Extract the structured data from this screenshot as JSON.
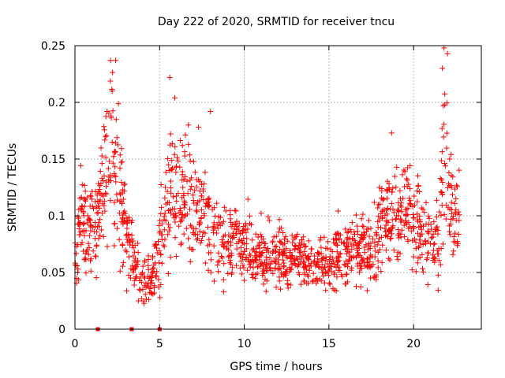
{
  "chart_data": {
    "type": "scatter",
    "title": "Day 222 of 2020, SRMTID for receiver tncu",
    "xlabel": "GPS time / hours",
    "ylabel": "SRMTID / TECUs",
    "xlim": [
      0,
      24
    ],
    "ylim": [
      0,
      0.25
    ],
    "x_ticks": [
      0,
      5,
      10,
      15,
      20
    ],
    "x_tick_labels": [
      "0",
      "5",
      "10",
      "15",
      "20"
    ],
    "y_ticks": [
      0,
      0.05,
      0.1,
      0.15,
      0.2,
      0.25
    ],
    "y_tick_labels": [
      "0",
      "0.05",
      "0.1",
      "0.15",
      "0.2",
      "0.25"
    ],
    "grid": true,
    "marker": "plus",
    "color": "#ff0000",
    "trend": {
      "x": [
        0,
        0.3,
        0.6,
        1.0,
        1.5,
        2.0,
        2.3,
        2.7,
        3.2,
        3.7,
        4.2,
        4.6,
        5.0,
        5.5,
        6.0,
        6.5,
        7.0,
        7.5,
        8.0,
        8.5,
        9.0,
        9.5,
        10.0,
        10.5,
        11.0,
        11.5,
        12.0,
        12.5,
        13.0,
        13.5,
        14.0,
        14.5,
        15.0,
        15.5,
        16.0,
        16.5,
        17.0,
        17.5,
        18.0,
        18.5,
        19.0,
        19.5,
        20.0,
        20.5,
        21.0,
        21.5,
        21.8,
        22.1,
        22.4,
        22.7
      ],
      "y": [
        0.055,
        0.1,
        0.09,
        0.085,
        0.105,
        0.16,
        0.17,
        0.11,
        0.07,
        0.055,
        0.045,
        0.045,
        0.075,
        0.11,
        0.12,
        0.12,
        0.11,
        0.1,
        0.085,
        0.08,
        0.07,
        0.085,
        0.075,
        0.068,
        0.065,
        0.062,
        0.065,
        0.06,
        0.062,
        0.06,
        0.055,
        0.055,
        0.06,
        0.065,
        0.068,
        0.068,
        0.07,
        0.068,
        0.085,
        0.1,
        0.1,
        0.11,
        0.1,
        0.085,
        0.075,
        0.08,
        0.16,
        0.13,
        0.1,
        0.1
      ],
      "spread": [
        0.015,
        0.03,
        0.025,
        0.025,
        0.03,
        0.045,
        0.05,
        0.035,
        0.02,
        0.015,
        0.015,
        0.015,
        0.025,
        0.04,
        0.04,
        0.04,
        0.035,
        0.03,
        0.025,
        0.025,
        0.02,
        0.025,
        0.02,
        0.018,
        0.018,
        0.018,
        0.018,
        0.016,
        0.016,
        0.016,
        0.015,
        0.015,
        0.018,
        0.018,
        0.018,
        0.018,
        0.02,
        0.02,
        0.025,
        0.03,
        0.03,
        0.03,
        0.03,
        0.025,
        0.02,
        0.025,
        0.06,
        0.04,
        0.025,
        0.025
      ]
    },
    "peaks": [
      {
        "x": 2.1,
        "y": 0.237
      },
      {
        "x": 2.4,
        "y": 0.237
      },
      {
        "x": 2.2,
        "y": 0.21
      },
      {
        "x": 5.6,
        "y": 0.222
      },
      {
        "x": 5.9,
        "y": 0.204
      },
      {
        "x": 8.0,
        "y": 0.192
      },
      {
        "x": 21.8,
        "y": 0.248
      },
      {
        "x": 22.0,
        "y": 0.243
      },
      {
        "x": 21.7,
        "y": 0.23
      },
      {
        "x": 18.7,
        "y": 0.173
      },
      {
        "x": 6.7,
        "y": 0.18
      },
      {
        "x": 7.3,
        "y": 0.178
      }
    ],
    "zero_points": [
      1.35,
      3.35,
      5.0
    ],
    "point_count": 1500
  }
}
